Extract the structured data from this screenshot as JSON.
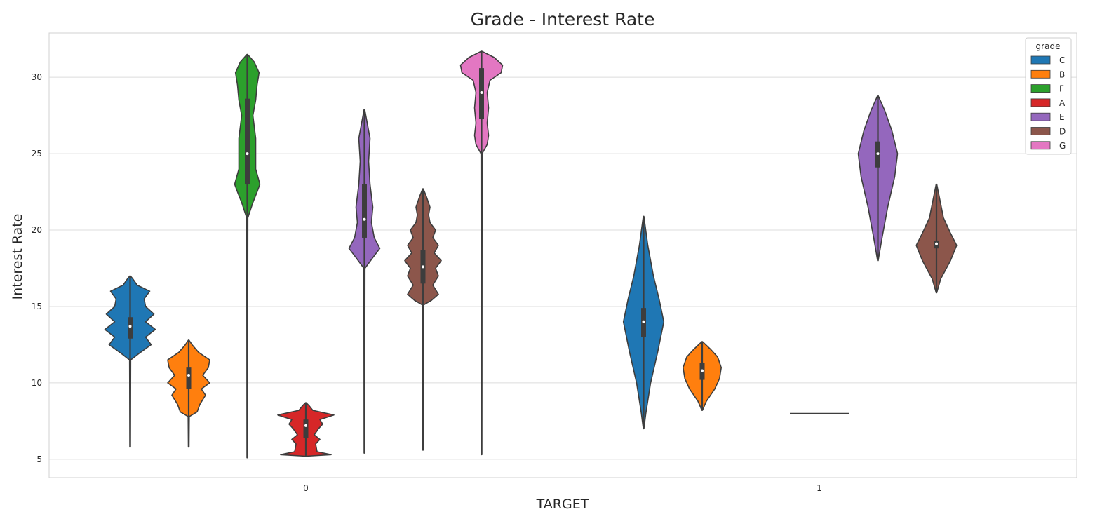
{
  "chart_data": {
    "type": "violin",
    "title": "Grade - Interest Rate",
    "xlabel": "TARGET",
    "ylabel": "Interest Rate",
    "categories": [
      "0",
      "1"
    ],
    "ylim": [
      3.8,
      32.9
    ],
    "yticks": [
      5,
      10,
      15,
      20,
      25,
      30
    ],
    "grid": "horizontal",
    "legend": {
      "title": "grade",
      "placement": "top-right",
      "entries": [
        {
          "label": "C",
          "color": "#1f77b4"
        },
        {
          "label": "B",
          "color": "#ff7f0e"
        },
        {
          "label": "F",
          "color": "#2ca02c"
        },
        {
          "label": "A",
          "color": "#d62728"
        },
        {
          "label": "E",
          "color": "#9467bd"
        },
        {
          "label": "D",
          "color": "#8c564b"
        },
        {
          "label": "G",
          "color": "#e377c2"
        }
      ]
    },
    "series": [
      {
        "name": "C",
        "color": "#1f77b4",
        "groups": [
          {
            "target": "0",
            "min": 5.8,
            "max": 17.0,
            "median": 13.7,
            "q1": 12.9,
            "q3": 14.3,
            "profile": [
              [
                5.8,
                0.01
              ],
              [
                11.5,
                0.02
              ],
              [
                11.9,
                0.3
              ],
              [
                12.5,
                0.75
              ],
              [
                13.0,
                0.55
              ],
              [
                13.5,
                0.9
              ],
              [
                14.0,
                0.55
              ],
              [
                14.5,
                0.85
              ],
              [
                15.0,
                0.55
              ],
              [
                15.5,
                0.5
              ],
              [
                16.0,
                0.7
              ],
              [
                16.4,
                0.25
              ],
              [
                16.8,
                0.1
              ],
              [
                17.0,
                0.01
              ]
            ]
          },
          {
            "target": "1",
            "min": 7.0,
            "max": 20.9,
            "median": 14.0,
            "q1": 13.0,
            "q3": 14.9,
            "profile": [
              [
                7.0,
                0.01
              ],
              [
                8.0,
                0.08
              ],
              [
                10.0,
                0.25
              ],
              [
                12.0,
                0.5
              ],
              [
                14.0,
                0.72
              ],
              [
                15.5,
                0.55
              ],
              [
                17.0,
                0.35
              ],
              [
                19.0,
                0.15
              ],
              [
                20.9,
                0.01
              ]
            ]
          }
        ]
      },
      {
        "name": "B",
        "color": "#ff7f0e",
        "groups": [
          {
            "target": "0",
            "min": 5.8,
            "max": 12.8,
            "median": 10.5,
            "q1": 9.6,
            "q3": 11.0,
            "profile": [
              [
                5.8,
                0.01
              ],
              [
                7.8,
                0.02
              ],
              [
                8.1,
                0.3
              ],
              [
                8.6,
                0.4
              ],
              [
                9.2,
                0.6
              ],
              [
                9.6,
                0.45
              ],
              [
                10.0,
                0.75
              ],
              [
                10.5,
                0.5
              ],
              [
                11.0,
                0.7
              ],
              [
                11.5,
                0.75
              ],
              [
                12.0,
                0.35
              ],
              [
                12.5,
                0.12
              ],
              [
                12.8,
                0.01
              ]
            ]
          },
          {
            "target": "1",
            "min": 8.2,
            "max": 12.7,
            "median": 10.8,
            "q1": 10.2,
            "q3": 11.3,
            "profile": [
              [
                8.2,
                0.01
              ],
              [
                8.8,
                0.15
              ],
              [
                9.6,
                0.45
              ],
              [
                10.3,
                0.62
              ],
              [
                11.0,
                0.68
              ],
              [
                11.7,
                0.55
              ],
              [
                12.2,
                0.3
              ],
              [
                12.7,
                0.01
              ]
            ]
          }
        ]
      },
      {
        "name": "F",
        "color": "#2ca02c",
        "groups": [
          {
            "target": "0",
            "min": 5.1,
            "max": 31.5,
            "median": 25.0,
            "q1": 23.0,
            "q3": 28.6,
            "profile": [
              [
                5.1,
                0.01
              ],
              [
                20.8,
                0.02
              ],
              [
                21.8,
                0.2
              ],
              [
                22.5,
                0.35
              ],
              [
                23.0,
                0.45
              ],
              [
                24.0,
                0.3
              ],
              [
                25.0,
                0.3
              ],
              [
                26.0,
                0.3
              ],
              [
                27.5,
                0.2
              ],
              [
                28.5,
                0.3
              ],
              [
                29.5,
                0.35
              ],
              [
                30.3,
                0.42
              ],
              [
                31.0,
                0.25
              ],
              [
                31.5,
                0.01
              ]
            ]
          }
        ]
      },
      {
        "name": "A",
        "color": "#d62728",
        "groups": [
          {
            "target": "0",
            "min": 5.2,
            "max": 8.7,
            "median": 7.2,
            "q1": 6.4,
            "q3": 7.6,
            "profile": [
              [
                5.2,
                0.01
              ],
              [
                5.3,
                0.9
              ],
              [
                5.5,
                0.4
              ],
              [
                6.0,
                0.35
              ],
              [
                6.3,
                0.5
              ],
              [
                6.6,
                0.3
              ],
              [
                7.0,
                0.45
              ],
              [
                7.3,
                0.6
              ],
              [
                7.6,
                0.5
              ],
              [
                7.9,
                1.0
              ],
              [
                8.2,
                0.25
              ],
              [
                8.5,
                0.12
              ],
              [
                8.7,
                0.01
              ]
            ]
          }
        ]
      },
      {
        "name": "E",
        "color": "#9467bd",
        "groups": [
          {
            "target": "0",
            "min": 5.4,
            "max": 27.9,
            "median": 20.7,
            "q1": 19.5,
            "q3": 23.0,
            "profile": [
              [
                5.4,
                0.01
              ],
              [
                17.5,
                0.02
              ],
              [
                18.2,
                0.3
              ],
              [
                18.8,
                0.55
              ],
              [
                19.5,
                0.35
              ],
              [
                20.5,
                0.25
              ],
              [
                21.5,
                0.3
              ],
              [
                23.0,
                0.2
              ],
              [
                24.5,
                0.15
              ],
              [
                26.0,
                0.2
              ],
              [
                27.0,
                0.1
              ],
              [
                27.9,
                0.01
              ]
            ]
          },
          {
            "target": "1",
            "min": 18.0,
            "max": 28.8,
            "median": 25.0,
            "q1": 24.1,
            "q3": 25.8,
            "profile": [
              [
                18.0,
                0.01
              ],
              [
                19.5,
                0.15
              ],
              [
                21.5,
                0.35
              ],
              [
                23.5,
                0.6
              ],
              [
                25.0,
                0.7
              ],
              [
                26.5,
                0.5
              ],
              [
                27.8,
                0.25
              ],
              [
                28.8,
                0.01
              ]
            ]
          }
        ]
      },
      {
        "name": "D",
        "color": "#8c564b",
        "groups": [
          {
            "target": "0",
            "min": 5.6,
            "max": 22.7,
            "median": 17.6,
            "q1": 16.5,
            "q3": 18.7,
            "profile": [
              [
                5.6,
                0.01
              ],
              [
                15.1,
                0.02
              ],
              [
                15.4,
                0.3
              ],
              [
                15.8,
                0.55
              ],
              [
                16.4,
                0.35
              ],
              [
                17.0,
                0.55
              ],
              [
                17.5,
                0.45
              ],
              [
                18.0,
                0.65
              ],
              [
                18.5,
                0.4
              ],
              [
                19.0,
                0.55
              ],
              [
                19.5,
                0.35
              ],
              [
                20.0,
                0.45
              ],
              [
                20.5,
                0.25
              ],
              [
                21.0,
                0.2
              ],
              [
                21.5,
                0.25
              ],
              [
                22.2,
                0.12
              ],
              [
                22.7,
                0.01
              ]
            ]
          },
          {
            "target": "1",
            "min": 15.9,
            "max": 23.0,
            "median": 19.1,
            "q1": 18.8,
            "q3": 19.3,
            "profile": [
              [
                15.9,
                0.01
              ],
              [
                16.8,
                0.15
              ],
              [
                18.0,
                0.5
              ],
              [
                19.0,
                0.72
              ],
              [
                19.8,
                0.5
              ],
              [
                20.8,
                0.25
              ],
              [
                22.0,
                0.12
              ],
              [
                23.0,
                0.01
              ]
            ]
          }
        ]
      },
      {
        "name": "G",
        "color": "#e377c2",
        "groups": [
          {
            "target": "0",
            "min": 5.3,
            "max": 31.7,
            "median": 29.0,
            "q1": 27.3,
            "q3": 30.6,
            "profile": [
              [
                5.3,
                0.01
              ],
              [
                25.0,
                0.02
              ],
              [
                25.6,
                0.2
              ],
              [
                26.2,
                0.25
              ],
              [
                27.0,
                0.2
              ],
              [
                28.0,
                0.25
              ],
              [
                29.0,
                0.2
              ],
              [
                29.8,
                0.3
              ],
              [
                30.3,
                0.7
              ],
              [
                30.8,
                0.75
              ],
              [
                31.3,
                0.45
              ],
              [
                31.7,
                0.01
              ]
            ]
          }
        ]
      }
    ],
    "empty_group": {
      "target": "1",
      "series": "A",
      "value": 8.0
    }
  }
}
